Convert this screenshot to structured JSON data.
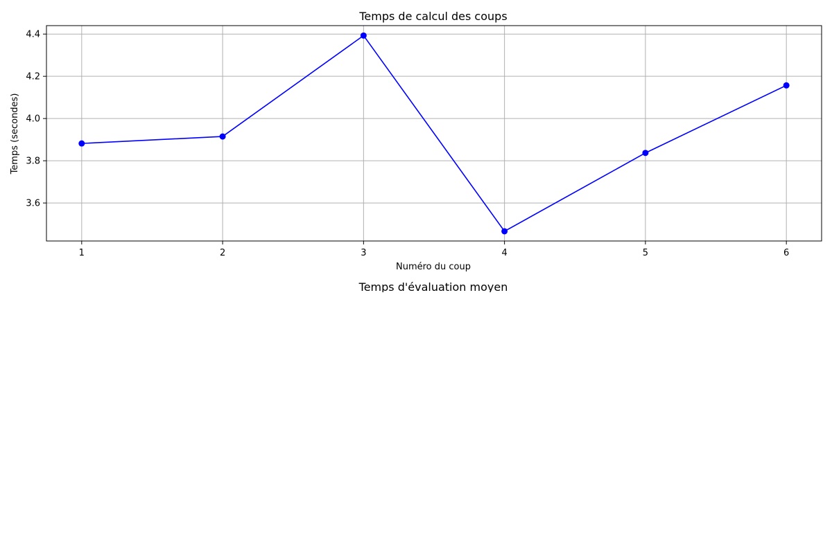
{
  "chart_data": [
    {
      "type": "line",
      "title": "Temps de calcul des coups",
      "xlabel": "Numéro du coup",
      "ylabel": "Temps (secondes)",
      "x": [
        1,
        2,
        3,
        4,
        5,
        6
      ],
      "series": [
        {
          "values": [
            3.882,
            3.915,
            4.393,
            3.466,
            3.837,
            4.157
          ],
          "color": "#0000ff",
          "marker": "circle"
        }
      ],
      "xticks": [
        "1",
        "2",
        "3",
        "4",
        "5",
        "6"
      ],
      "yticks": [
        "3.6",
        "3.8",
        "4.0",
        "4.2",
        "4.4"
      ],
      "xlim": [
        0.75,
        6.25
      ],
      "ylim": [
        3.42,
        4.44
      ],
      "grid": true
    },
    {
      "type": "bar",
      "title": "Temps d'évaluation moyen"
    }
  ]
}
